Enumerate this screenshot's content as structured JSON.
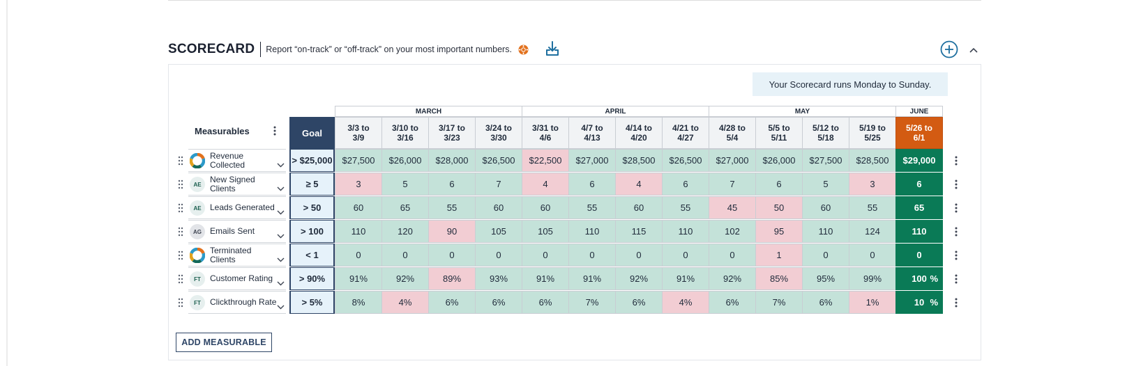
{
  "header": {
    "title": "SCORECARD",
    "subtitle": "Report “on-track” or “off-track” on your most important numbers."
  },
  "runs_note": "Your Scorecard runs Monday to Sunday.",
  "table": {
    "measurables_label": "Measurables",
    "goal_label": "Goal",
    "months": [
      "MARCH",
      "APRIL",
      "MAY",
      "JUNE"
    ],
    "weeks": [
      [
        "3/3 to",
        "3/9"
      ],
      [
        "3/10 to",
        "3/16"
      ],
      [
        "3/17 to",
        "3/23"
      ],
      [
        "3/24 to",
        "3/30"
      ],
      [
        "3/31 to",
        "4/6"
      ],
      [
        "4/7 to",
        "4/13"
      ],
      [
        "4/14 to",
        "4/20"
      ],
      [
        "4/21 to",
        "4/27"
      ],
      [
        "4/28 to",
        "5/4"
      ],
      [
        "5/5 to",
        "5/11"
      ],
      [
        "5/12 to",
        "5/18"
      ],
      [
        "5/19 to",
        "5/25"
      ],
      [
        "5/26 to",
        "6/1"
      ]
    ],
    "rows": [
      {
        "name": [
          "Revenue",
          "Collected"
        ],
        "owner": "logo",
        "goal": "> $25,000",
        "values": [
          "$27,500",
          "$26,000",
          "$28,000",
          "$26,500",
          "$22,500",
          "$27,000",
          "$28,500",
          "$26,500",
          "$27,000",
          "$26,000",
          "$27,500",
          "$28,500",
          "$29,000"
        ],
        "status": [
          "on",
          "on",
          "on",
          "on",
          "off",
          "on",
          "on",
          "on",
          "on",
          "on",
          "on",
          "on",
          "current"
        ]
      },
      {
        "name": [
          "New Signed",
          "Clients"
        ],
        "owner": "AE",
        "goal": "≥ 5",
        "values": [
          "3",
          "5",
          "6",
          "7",
          "4",
          "6",
          "4",
          "6",
          "7",
          "6",
          "5",
          "3",
          "6"
        ],
        "status": [
          "off",
          "on",
          "on",
          "on",
          "off",
          "on",
          "off",
          "on",
          "on",
          "on",
          "on",
          "off",
          "current"
        ]
      },
      {
        "name": [
          "Leads Generated"
        ],
        "owner": "AE",
        "goal": "> 50",
        "values": [
          "60",
          "65",
          "55",
          "60",
          "60",
          "55",
          "60",
          "55",
          "45",
          "50",
          "60",
          "55",
          "65"
        ],
        "status": [
          "on",
          "on",
          "on",
          "on",
          "on",
          "on",
          "on",
          "on",
          "off",
          "off",
          "on",
          "on",
          "current"
        ]
      },
      {
        "name": [
          "Emails Sent"
        ],
        "owner": "AG",
        "goal": "> 100",
        "values": [
          "110",
          "120",
          "90",
          "105",
          "105",
          "110",
          "115",
          "110",
          "102",
          "95",
          "110",
          "124",
          "110"
        ],
        "status": [
          "on",
          "on",
          "off",
          "on",
          "on",
          "on",
          "on",
          "on",
          "on",
          "off",
          "on",
          "on",
          "current"
        ]
      },
      {
        "name": [
          "Terminated",
          "Clients"
        ],
        "owner": "logo",
        "goal": "< 1",
        "values": [
          "0",
          "0",
          "0",
          "0",
          "0",
          "0",
          "0",
          "0",
          "0",
          "1",
          "0",
          "0",
          "0"
        ],
        "status": [
          "on",
          "on",
          "on",
          "on",
          "on",
          "on",
          "on",
          "on",
          "on",
          "off",
          "on",
          "on",
          "current"
        ]
      },
      {
        "name": [
          "Customer Rating"
        ],
        "owner": "FT",
        "goal": "> 90%",
        "values": [
          "91%",
          "92%",
          "89%",
          "93%",
          "91%",
          "91%",
          "92%",
          "91%",
          "92%",
          "85%",
          "95%",
          "99%",
          "100"
        ],
        "unit": "%",
        "status": [
          "on",
          "on",
          "off",
          "on",
          "on",
          "on",
          "on",
          "on",
          "on",
          "off",
          "on",
          "on",
          "current"
        ]
      },
      {
        "name": [
          "Clickthrough Rate"
        ],
        "owner": "FT",
        "goal": "> 5%",
        "values": [
          "8%",
          "4%",
          "6%",
          "6%",
          "6%",
          "7%",
          "6%",
          "4%",
          "6%",
          "7%",
          "6%",
          "1%",
          "10"
        ],
        "unit": "%",
        "status": [
          "on",
          "off",
          "on",
          "on",
          "on",
          "on",
          "on",
          "off",
          "on",
          "on",
          "on",
          "off",
          "current"
        ]
      }
    ]
  },
  "add_measurable_label": "ADD MEASURABLE",
  "colors": {
    "on_track": "#c4e2d9",
    "off_track": "#f2cdd3",
    "current_value": "#0a7a56",
    "current_week": "#d35b12",
    "goal_header": "#2e4566",
    "accent": "#1e6f9f"
  }
}
